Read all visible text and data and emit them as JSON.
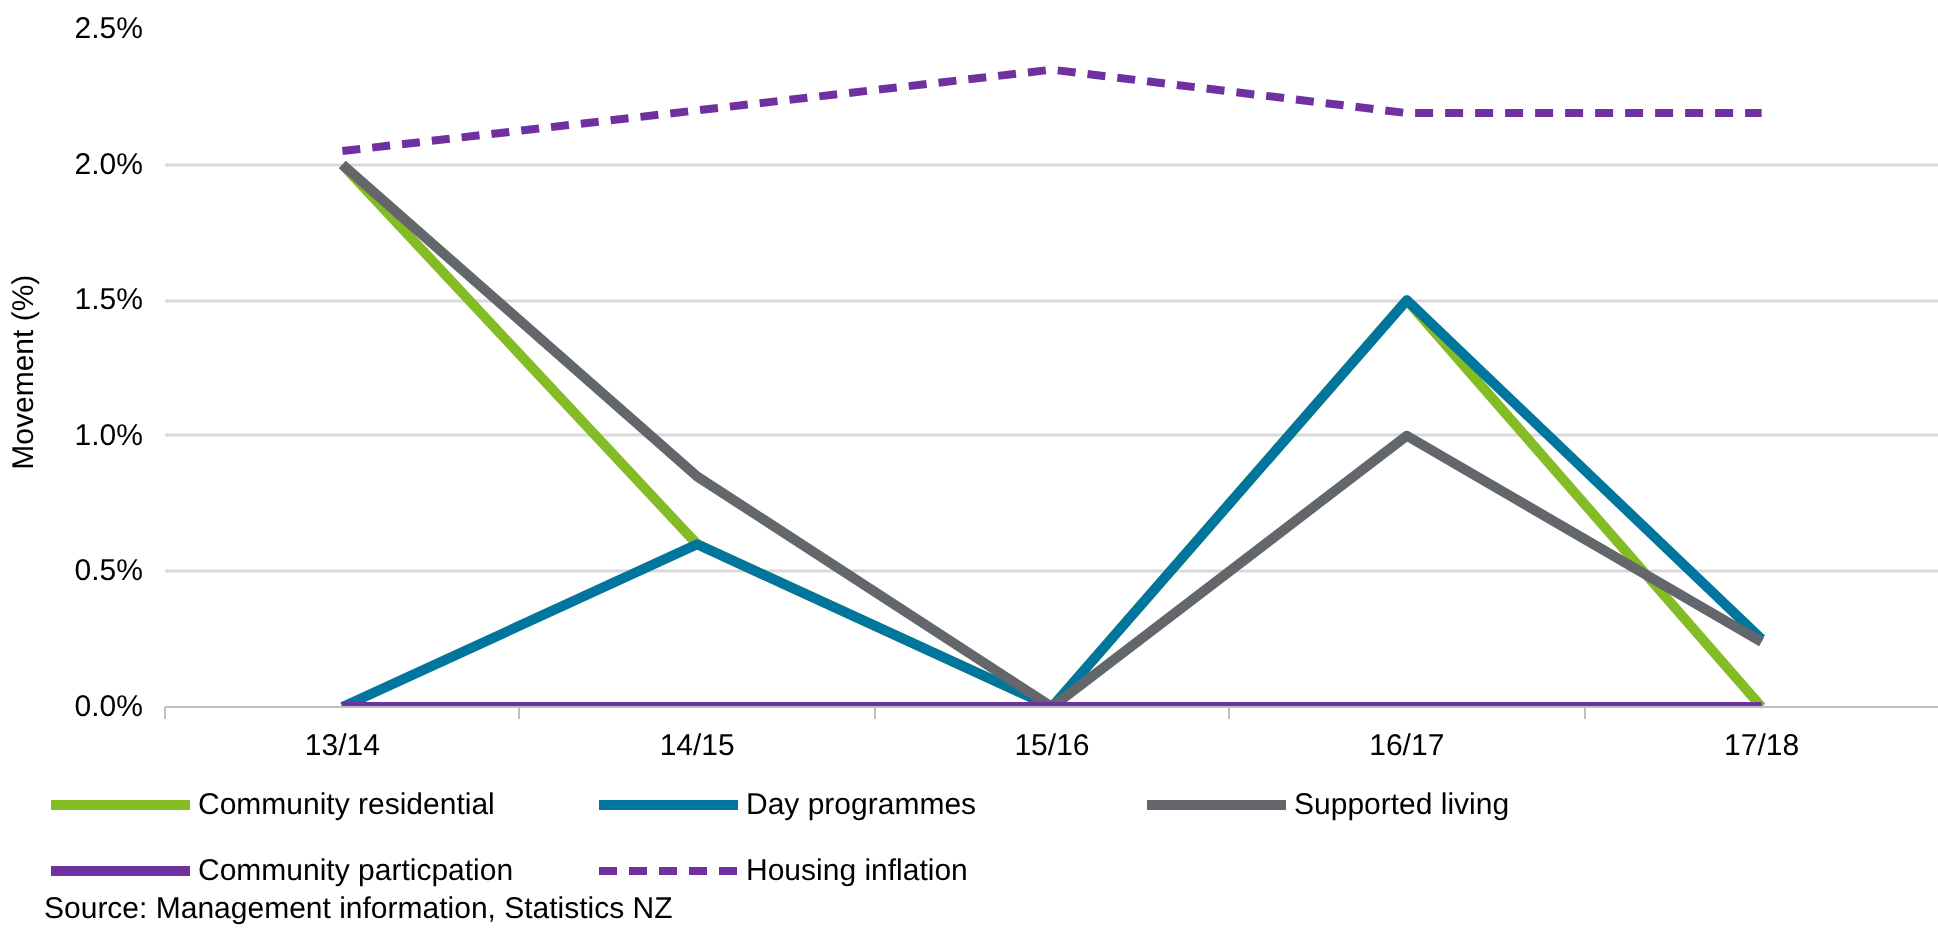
{
  "chart_data": {
    "type": "line",
    "categories": [
      "13/14",
      "14/15",
      "15/16",
      "16/17",
      "17/18"
    ],
    "ylabel": "Movement  (%)",
    "ylim": [
      0,
      2.5
    ],
    "yticks": [
      {
        "value": 0,
        "label": "0.0%"
      },
      {
        "value": 0.5,
        "label": "0.5%"
      },
      {
        "value": 1.0,
        "label": "1.0%"
      },
      {
        "value": 1.5,
        "label": "1.5%"
      },
      {
        "value": 2.0,
        "label": "2.0%"
      },
      {
        "value": 2.5,
        "label": "2.5%"
      }
    ],
    "grid": "y",
    "legend": "bottom",
    "marker": "none",
    "line_style": "solid",
    "series": [
      {
        "name": "Community residential",
        "color": "#84bc25",
        "values": [
          2.0,
          0.6,
          0,
          1.5,
          0
        ]
      },
      {
        "name": "Day programmes",
        "color": "#00759e",
        "values": [
          0,
          0.6,
          0,
          1.5,
          0.25
        ]
      },
      {
        "name": "Supported living",
        "color": "#63666a",
        "values": [
          2.0,
          0.85,
          0,
          1.0,
          0.24
        ]
      },
      {
        "name": "Community particpation",
        "color": "#7030a0",
        "values": [
          0,
          0,
          0,
          0,
          0
        ]
      },
      {
        "name": "Housing inflation",
        "color": "#7030a0",
        "line_style": "dashed",
        "values": [
          2.05,
          2.2,
          2.35,
          2.19,
          2.19
        ]
      }
    ],
    "annotations": [
      "Source: Management information, Statistics NZ"
    ]
  }
}
